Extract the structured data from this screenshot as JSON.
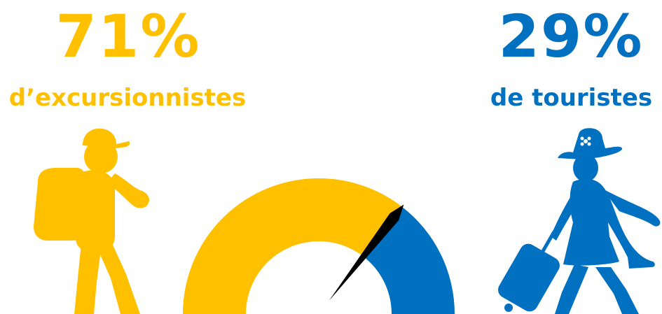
{
  "colors": {
    "excursionists": "#FFC000",
    "tourists": "#0070C0",
    "needle": "#000000"
  },
  "stats": {
    "excursionists": {
      "percent_text": "71%",
      "label": "d’excursionnistes"
    },
    "tourists": {
      "percent_text": "29%",
      "label": "de touristes"
    }
  },
  "icons": {
    "left": "hiker-with-backpack-and-cap-icon",
    "right": "woman-with-hat-and-rolling-suitcase-icon"
  },
  "chart_data": {
    "type": "gauge",
    "series": [
      {
        "name": "d’excursionnistes",
        "value": 71
      },
      {
        "name": "de touristes",
        "value": 29
      }
    ],
    "needle_value": 71,
    "range": [
      0,
      100
    ]
  }
}
